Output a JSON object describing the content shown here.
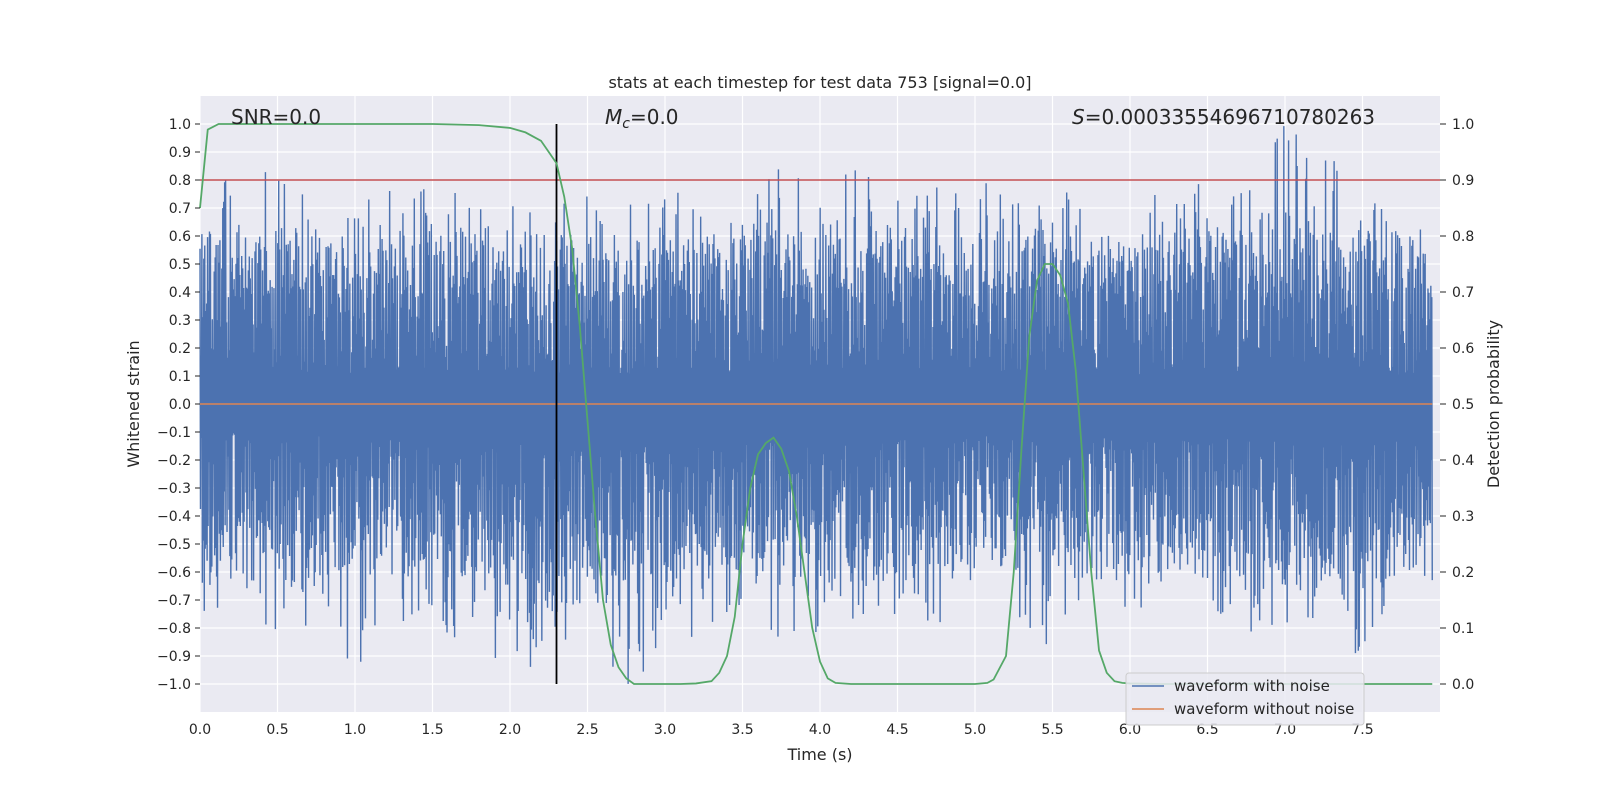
{
  "chart_data": {
    "type": "line",
    "title": "stats at each timestep for test data 753 [signal=0.0]",
    "xlabel": "Time (s)",
    "ylabel": "Whitened strain",
    "y2label": "Detection probability",
    "xlim": [
      0.0,
      8.0
    ],
    "ylim": [
      -1.1,
      1.1
    ],
    "y2lim": [
      -0.05,
      1.05
    ],
    "x_ticks": [
      "0.0",
      "0.5",
      "1.0",
      "1.5",
      "2.0",
      "2.5",
      "3.0",
      "3.5",
      "4.0",
      "4.5",
      "5.0",
      "5.5",
      "6.0",
      "6.5",
      "7.0",
      "7.5"
    ],
    "y_ticks": [
      "1.0",
      "0.9",
      "0.8",
      "0.7",
      "0.6",
      "0.5",
      "0.4",
      "0.3",
      "0.2",
      "0.1",
      "0.0",
      "−0.1",
      "−0.2",
      "−0.3",
      "−0.4",
      "−0.5",
      "−0.6",
      "−0.7",
      "−0.8",
      "−0.9",
      "−1.0"
    ],
    "y2_ticks": [
      "1.0",
      "0.9",
      "0.8",
      "0.7",
      "0.6",
      "0.5",
      "0.4",
      "0.3",
      "0.2",
      "0.1",
      "0.0"
    ],
    "grid": true,
    "legend_position": "bottom-right",
    "annotations": {
      "snr": "SNR=0.0",
      "mc_symbol": "M",
      "mc_sub": "c",
      "mc_value": "=0.0",
      "s_symbol": "S",
      "s_value": "=0.00033554696710780263"
    },
    "series": [
      {
        "name": "waveform with noise",
        "color": "#4c72b0",
        "description": "noisy whitened strain, roughly symmetric about 0, peaks to about ±1.0",
        "envelope": {
          "x": [
            0.0,
            0.25,
            0.5,
            0.75,
            1.0,
            1.25,
            1.5,
            1.75,
            2.0,
            2.25,
            2.5,
            2.75,
            3.0,
            3.25,
            3.5,
            3.75,
            4.0,
            4.25,
            4.5,
            4.75,
            5.0,
            5.25,
            5.5,
            5.75,
            6.0,
            6.25,
            6.5,
            6.75,
            7.0,
            7.25,
            7.5,
            7.75,
            7.95
          ],
          "max": [
            0.62,
            0.89,
            0.8,
            0.72,
            0.73,
            0.81,
            0.8,
            0.72,
            0.71,
            0.66,
            0.8,
            0.7,
            0.81,
            0.72,
            0.76,
            0.89,
            0.7,
            0.88,
            0.76,
            0.86,
            0.82,
            0.71,
            0.77,
            0.73,
            0.65,
            0.8,
            0.84,
            0.74,
            1.0,
            0.87,
            0.86,
            0.66,
            0.63
          ],
          "min": [
            -0.8,
            -0.64,
            -0.93,
            -0.74,
            -0.95,
            -0.75,
            -0.85,
            -0.82,
            -0.96,
            -0.92,
            -0.82,
            -1.0,
            -0.99,
            -0.76,
            -0.84,
            -0.83,
            -0.86,
            -0.75,
            -0.75,
            -0.78,
            -0.77,
            -0.74,
            -0.88,
            -0.81,
            -0.79,
            -0.78,
            -0.8,
            -0.81,
            -0.83,
            -0.82,
            -0.94,
            -0.8,
            -0.76
          ]
        }
      },
      {
        "name": "waveform without noise",
        "color": "#dd8452",
        "x": [
          0.0,
          8.0
        ],
        "y": [
          0.0,
          0.0
        ]
      },
      {
        "name": "detection probability",
        "axis": "right",
        "color": "#55a868",
        "x": [
          0.0,
          0.05,
          0.12,
          0.25,
          0.5,
          1.0,
          1.5,
          1.8,
          2.0,
          2.1,
          2.2,
          2.25,
          2.3,
          2.35,
          2.4,
          2.45,
          2.5,
          2.55,
          2.6,
          2.65,
          2.7,
          2.75,
          2.8,
          2.9,
          3.0,
          3.1,
          3.2,
          3.3,
          3.35,
          3.4,
          3.45,
          3.5,
          3.55,
          3.6,
          3.65,
          3.7,
          3.75,
          3.8,
          3.85,
          3.9,
          3.95,
          4.0,
          4.05,
          4.1,
          4.2,
          4.5,
          5.0,
          5.08,
          5.12,
          5.2,
          5.25,
          5.3,
          5.35,
          5.4,
          5.45,
          5.5,
          5.55,
          5.6,
          5.65,
          5.7,
          5.75,
          5.8,
          5.85,
          5.9,
          5.95,
          6.0,
          6.2,
          7.0,
          7.6,
          7.95
        ],
        "y": [
          0.85,
          0.99,
          1.0,
          1.0,
          1.0,
          1.0,
          1.0,
          0.998,
          0.993,
          0.985,
          0.97,
          0.95,
          0.93,
          0.87,
          0.78,
          0.64,
          0.47,
          0.3,
          0.15,
          0.07,
          0.03,
          0.01,
          0.0,
          0.0,
          0.0,
          0.0,
          0.001,
          0.005,
          0.02,
          0.05,
          0.12,
          0.25,
          0.35,
          0.41,
          0.43,
          0.44,
          0.42,
          0.38,
          0.3,
          0.2,
          0.1,
          0.04,
          0.01,
          0.002,
          0.0,
          0.0,
          0.0,
          0.002,
          0.008,
          0.05,
          0.2,
          0.42,
          0.62,
          0.72,
          0.75,
          0.75,
          0.73,
          0.68,
          0.56,
          0.38,
          0.2,
          0.06,
          0.02,
          0.005,
          0.002,
          0.001,
          0.0,
          0.0,
          0.0,
          0.0
        ]
      }
    ],
    "threshold_line": {
      "axis": "right",
      "y": 0.9,
      "color": "#c44e52"
    },
    "marker_line": {
      "x": 2.3,
      "y_from": -1.0,
      "y_to": 1.0,
      "color": "#000000"
    },
    "legend": [
      "waveform with noise",
      "waveform without noise"
    ]
  }
}
